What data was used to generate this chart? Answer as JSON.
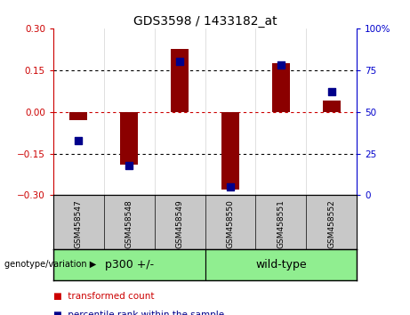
{
  "title": "GDS3598 / 1433182_at",
  "samples": [
    "GSM458547",
    "GSM458548",
    "GSM458549",
    "GSM458550",
    "GSM458551",
    "GSM458552"
  ],
  "red_values": [
    -0.03,
    -0.19,
    0.225,
    -0.28,
    0.175,
    0.04
  ],
  "blue_values_pct": [
    33,
    18,
    80,
    5,
    78,
    62
  ],
  "ylim_left": [
    -0.3,
    0.3
  ],
  "ylim_right": [
    0,
    100
  ],
  "yticks_left": [
    -0.3,
    -0.15,
    0,
    0.15,
    0.3
  ],
  "yticks_right": [
    0,
    25,
    50,
    75,
    100
  ],
  "ytick_right_labels": [
    "0",
    "25",
    "50",
    "75",
    "100%"
  ],
  "hlines": [
    0.15,
    0.0,
    -0.15
  ],
  "hline_colors": [
    "black",
    "#CC0000",
    "black"
  ],
  "hline_styles": [
    "dotted",
    "dotted",
    "dotted"
  ],
  "bar_color": "#8B0000",
  "dot_color": "#00008B",
  "bar_width": 0.35,
  "dot_size": 40,
  "left_tick_color": "#CC0000",
  "right_tick_color": "#0000CC",
  "group1_label": "p300 +/-",
  "group2_label": "wild-type",
  "group_color": "#90EE90",
  "sample_box_color": "#C8C8C8",
  "genotype_label": "genotype/variation",
  "legend_red_label": "transformed count",
  "legend_blue_label": "percentile rank within the sample",
  "legend_red_color": "#CC0000",
  "legend_blue_color": "#00008B",
  "figure_bg": "#FFFFFF"
}
